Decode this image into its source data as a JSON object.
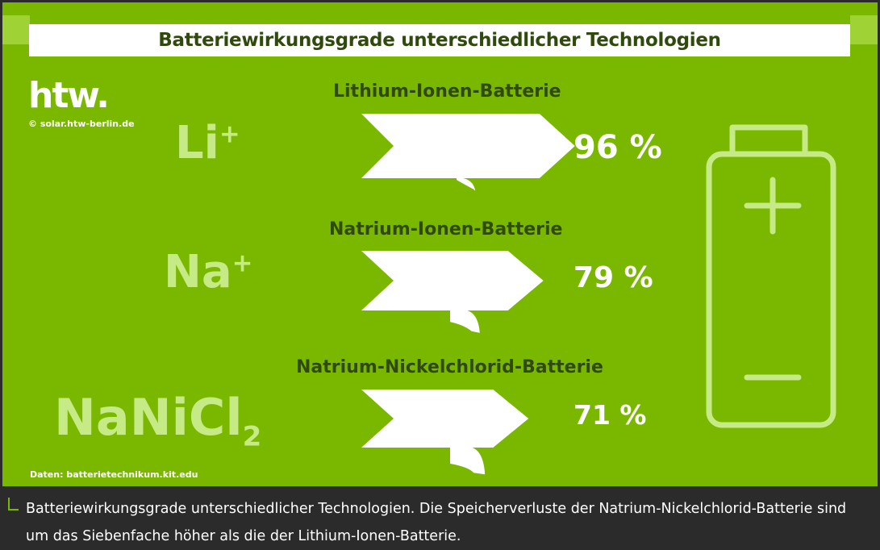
{
  "infographic": {
    "title": "Batteriewirkungsgrade unterschiedlicher Technologien",
    "logo_text": "htw.",
    "copyright": "© solar.htw-berlin.de",
    "data_source": "Daten: batterietechnikum.kit.edu",
    "colors": {
      "background": "#7ab800",
      "light_green": "#c5ea86",
      "dark_text": "#2f4a0c",
      "white": "#ffffff"
    }
  },
  "chemistries": [
    {
      "symbol": "Li",
      "superscript": "+",
      "subscript": ""
    },
    {
      "symbol": "Na",
      "superscript": "+",
      "subscript": ""
    },
    {
      "symbol": "NaNiCl",
      "superscript": "",
      "subscript": "2"
    }
  ],
  "caption": "Batteriewirkungsgrade unterschiedlicher Technologien. Die Speicherverluste der Natrium-Nickelchlorid-Batterie sind um das Siebenfache höher als die der Lithium-Ionen-Batterie.",
  "chart_data": {
    "type": "bar",
    "title": "Batteriewirkungsgrade unterschiedlicher Technologien",
    "categories": [
      "Lithium-Ionen-Batterie",
      "Natrium-Ionen-Batterie",
      "Natrium-Nickelchlorid-Batterie"
    ],
    "values": [
      96,
      79,
      71
    ],
    "value_labels": [
      "96 %",
      "79 %",
      "71 %"
    ],
    "unit": "%"
  }
}
